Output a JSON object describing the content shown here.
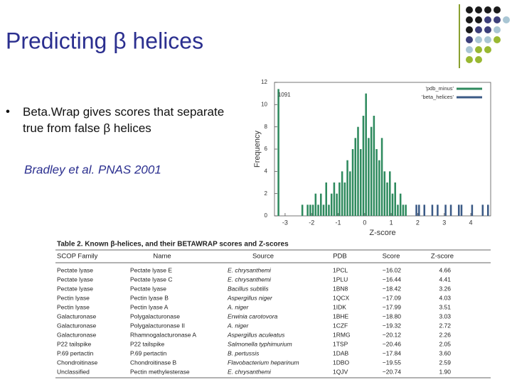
{
  "header": {
    "title": "Predicting β helices"
  },
  "bullets": [
    "Beta.Wrap gives scores that separate true from false β helices"
  ],
  "citation": "Bradley et al. PNAS 2001",
  "chart_data": {
    "type": "histogram",
    "xlabel": "Z-score",
    "ylabel": "Frequency",
    "annotation": "1091",
    "xlim": [
      -3.4,
      4.75
    ],
    "xticks": [
      -3,
      -2,
      -1,
      0,
      1,
      2,
      3,
      4
    ],
    "ylim": [
      0,
      12
    ],
    "yticks": [
      0,
      2,
      4,
      6,
      8,
      10,
      12
    ],
    "legend": "upper right",
    "series": [
      {
        "name": "'pdb_minus'",
        "color": "#2e8a5e",
        "bins": [
          -3.3,
          -3.2,
          -3.1,
          -3.0,
          -2.9,
          -2.8,
          -2.7,
          -2.6,
          -2.5,
          -2.4,
          -2.3,
          -2.2,
          -2.1,
          -2.0,
          -1.9,
          -1.8,
          -1.7,
          -1.6,
          -1.5,
          -1.4,
          -1.3,
          -1.2,
          -1.1,
          -1.0,
          -0.9,
          -0.8,
          -0.7,
          -0.6,
          -0.5,
          -0.4,
          -0.3,
          -0.2,
          -0.1,
          0.0,
          0.1,
          0.2,
          0.3,
          0.4,
          0.5,
          0.6,
          0.7,
          0.8,
          0.9,
          1.0,
          1.1,
          1.2,
          1.3,
          1.4,
          1.5,
          1.6
        ],
        "values": [
          11.4,
          0,
          0,
          0,
          0,
          0,
          0,
          0,
          0,
          1,
          0,
          1,
          1,
          1,
          2,
          1,
          2,
          1,
          3,
          1,
          2,
          3,
          2,
          3,
          4,
          3,
          5,
          4,
          6,
          7,
          8,
          6,
          9,
          11,
          7,
          8,
          9,
          6,
          5,
          7,
          4,
          3,
          4,
          2,
          3,
          1,
          2,
          1,
          1
        ]
      },
      {
        "name": "'beta_helices'",
        "color": "#3b5a86",
        "bins": [
          1.9,
          2.0,
          2.1,
          2.2,
          2.3,
          2.4,
          2.5,
          2.6,
          2.7,
          2.8,
          2.9,
          3.0,
          3.1,
          3.2,
          3.3,
          3.4,
          3.5,
          3.6,
          3.7,
          3.8,
          3.9,
          4.0,
          4.1,
          4.2,
          4.3,
          4.4,
          4.5,
          4.6,
          4.7
        ],
        "values": [
          1,
          1,
          0,
          1,
          0,
          0,
          1,
          0,
          1,
          0,
          0,
          1,
          0,
          1,
          0,
          0,
          1,
          1,
          0,
          0,
          0,
          1,
          0,
          0,
          0,
          1,
          0,
          1
        ]
      }
    ]
  },
  "table": {
    "title": "Table 2. Known β-helices, and their BETAWRAP scores and Z-scores",
    "columns": [
      "SCOP Family",
      "Name",
      "Source",
      "PDB",
      "Score",
      "Z-score"
    ],
    "rows": [
      [
        "Pectate lyase",
        "Pectate lyase E",
        "E. chrysanthemi",
        "1PCL",
        "−16.02",
        "4.66"
      ],
      [
        "Pectate lyase",
        "Pectate lyase C",
        "E. chrysanthemi",
        "1PLU",
        "−16.44",
        "4.41"
      ],
      [
        "Pectate lyase",
        "Pectate lyase",
        "Bacillus subtilis",
        "1BN8",
        "−18.42",
        "3.26"
      ],
      [
        "Pectin lyase",
        "Pectin lyase B",
        "Aspergillus niger",
        "1QCX",
        "−17.09",
        "4.03"
      ],
      [
        "Pectin lyase",
        "Pectin lyase A",
        "A. niger",
        "1IDK",
        "−17.99",
        "3.51"
      ],
      [
        "Galacturonase",
        "Polygalacturonase",
        "Erwinia carotovora",
        "1BHE",
        "−18.80",
        "3.03"
      ],
      [
        "Galacturonase",
        "Polygalacturonase II",
        "A. niger",
        "1CZF",
        "−19.32",
        "2.72"
      ],
      [
        "Galacturonase",
        "Rhamnogalacturonase A",
        "Aspergillus aculeatus",
        "1RMG",
        "−20.12",
        "2.26"
      ],
      [
        "P22 tailspike",
        "P22 tailspike",
        "Salmonella typhimurium",
        "1TSP",
        "−20.46",
        "2.05"
      ],
      [
        "P.69 pertactin",
        "P.69 pertactin",
        "B. pertussis",
        "1DAB",
        "−17.84",
        "3.60"
      ],
      [
        "Chondroitinase",
        "Chondroitinase B",
        "Flavobacterium heparinum",
        "1DBO",
        "−19.55",
        "2.59"
      ],
      [
        "Unclassified",
        "Pectin methylesterase",
        "E. chrysanthemi",
        "1QJV",
        "−20.74",
        "1.90"
      ]
    ]
  }
}
